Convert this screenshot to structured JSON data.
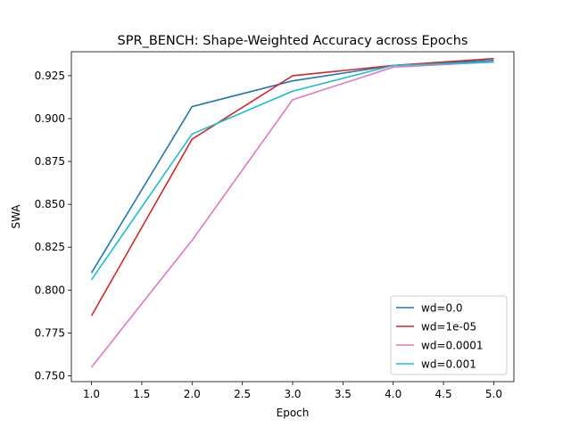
{
  "chart_data": {
    "type": "line",
    "title": "SPR_BENCH: Shape-Weighted Accuracy across Epochs",
    "xlabel": "Epoch",
    "ylabel": "SWA",
    "xlim": [
      0.8,
      5.2
    ],
    "ylim": [
      0.7466,
      0.939
    ],
    "xticks": [
      1.0,
      1.5,
      2.0,
      2.5,
      3.0,
      3.5,
      4.0,
      4.5,
      5.0
    ],
    "xtick_labels": [
      "1.0",
      "1.5",
      "2.0",
      "2.5",
      "3.0",
      "3.5",
      "4.0",
      "4.5",
      "5.0"
    ],
    "yticks": [
      0.75,
      0.775,
      0.8,
      0.825,
      0.85,
      0.875,
      0.9,
      0.925
    ],
    "ytick_labels": [
      "0.750",
      "0.775",
      "0.800",
      "0.825",
      "0.850",
      "0.875",
      "0.900",
      "0.925"
    ],
    "grid": false,
    "legend_position": "bottom-right",
    "x": [
      1,
      2,
      3,
      4,
      5
    ],
    "series": [
      {
        "name": "wd=0.0",
        "color": "#1f77b4",
        "values": [
          0.81,
          0.907,
          0.922,
          0.931,
          0.934
        ]
      },
      {
        "name": "wd=1e-05",
        "color": "#d62728",
        "values": [
          0.785,
          0.888,
          0.925,
          0.931,
          0.935
        ]
      },
      {
        "name": "wd=0.0001",
        "color": "#e377c2",
        "values": [
          0.755,
          0.829,
          0.911,
          0.93,
          0.933
        ]
      },
      {
        "name": "wd=0.001",
        "color": "#17becf",
        "values": [
          0.806,
          0.891,
          0.916,
          0.931,
          0.933
        ]
      }
    ]
  }
}
